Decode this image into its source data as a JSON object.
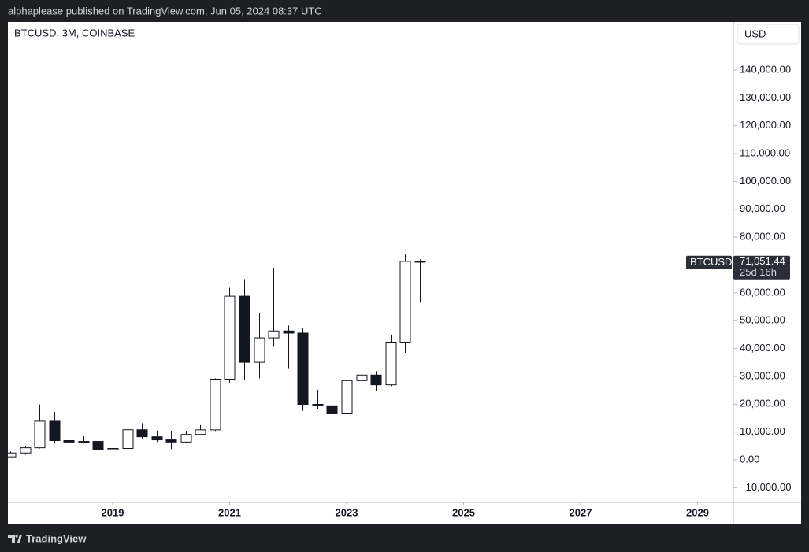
{
  "header": {
    "text": "alphaplease published on TradingView.com, Jun 05, 2024 08:37 UTC"
  },
  "footer": {
    "brand": "TradingView"
  },
  "chart_data": {
    "type": "candlestick",
    "title": "BTCUSD, 3M, COINBASE",
    "currency": "USD",
    "symbol": "BTCUSD",
    "last_price": {
      "value": 71051.44,
      "label": "71,051.44"
    },
    "countdown": "25d 16h",
    "x": [
      2017.25,
      2017.5,
      2017.75,
      2018.0,
      2018.25,
      2018.5,
      2018.75,
      2019.0,
      2019.25,
      2019.5,
      2019.75,
      2020.0,
      2020.25,
      2020.5,
      2020.75,
      2021.0,
      2021.25,
      2021.5,
      2021.75,
      2022.0,
      2022.25,
      2022.5,
      2022.75,
      2023.0,
      2023.25,
      2023.5,
      2023.75,
      2024.0,
      2024.25
    ],
    "open": [
      1080,
      2480,
      4340,
      13880,
      6930,
      6390,
      6630,
      3690,
      4100,
      10820,
      8300,
      7190,
      6410,
      9140,
      10780,
      28990,
      58800,
      35040,
      43820,
      46310,
      45540,
      19940,
      19420,
      16550,
      28480,
      30470,
      26960,
      42280,
      71290
    ],
    "high": [
      3000,
      4980,
      19890,
      17250,
      9990,
      8490,
      6790,
      4200,
      13880,
      13190,
      10540,
      10500,
      10430,
      12480,
      29300,
      61790,
      64900,
      52920,
      69000,
      48240,
      47450,
      25210,
      21480,
      29190,
      31430,
      31840,
      45000,
      73830,
      72000
    ],
    "low": [
      1060,
      1830,
      4110,
      5870,
      5780,
      5860,
      3120,
      3360,
      4070,
      7710,
      6430,
      3860,
      6150,
      8900,
      10380,
      27680,
      28800,
      29280,
      40600,
      32900,
      17590,
      18150,
      15480,
      16500,
      24750,
      24900,
      26520,
      38500,
      56500
    ],
    "close": [
      2480,
      4340,
      13880,
      6930,
      6390,
      6630,
      3690,
      4100,
      10820,
      8300,
      7190,
      6410,
      9140,
      10780,
      28990,
      58800,
      35040,
      43820,
      46310,
      45540,
      19940,
      19420,
      16550,
      28480,
      30470,
      26960,
      42280,
      71290,
      71051.44
    ],
    "up_color": "#ffffff",
    "down_color": "#131722",
    "border_color": "#131722",
    "xlim": [
      2017.209,
      2029.613
    ],
    "xticks": [
      2019,
      2021,
      2023,
      2025,
      2027,
      2029
    ],
    "ylim": [
      -15273,
      157253
    ],
    "yticks": [
      {
        "value": -10000,
        "label": "−10,000.00"
      },
      {
        "value": 0,
        "label": "0.00"
      },
      {
        "value": 10000,
        "label": "10,000.00"
      },
      {
        "value": 20000,
        "label": "20,000.00"
      },
      {
        "value": 30000,
        "label": "30,000.00"
      },
      {
        "value": 40000,
        "label": "40,000.00"
      },
      {
        "value": 50000,
        "label": "50,000.00"
      },
      {
        "value": 60000,
        "label": "60,000.00"
      },
      {
        "value": 70000,
        "label": "70,000.00"
      },
      {
        "value": 80000,
        "label": "80,000.00"
      },
      {
        "value": 90000,
        "label": "90,000.00"
      },
      {
        "value": 100000,
        "label": "100,000.00"
      },
      {
        "value": 110000,
        "label": "110,000.00"
      },
      {
        "value": 120000,
        "label": "120,000.00"
      },
      {
        "value": 130000,
        "label": "130,000.00"
      },
      {
        "value": 140000,
        "label": "140,000.00"
      }
    ],
    "grid": false
  }
}
